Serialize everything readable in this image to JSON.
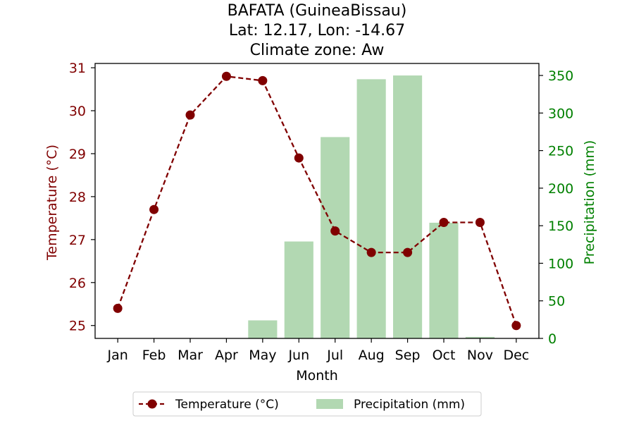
{
  "chart_data": {
    "type": "bar+line",
    "title_lines": [
      "BAFATA (GuineaBissau)",
      "Lat: 12.17, Lon: -14.67",
      "Climate zone: Aw"
    ],
    "xlabel": "Month",
    "categories": [
      "Jan",
      "Feb",
      "Mar",
      "Apr",
      "May",
      "Jun",
      "Jul",
      "Aug",
      "Sep",
      "Oct",
      "Nov",
      "Dec"
    ],
    "temperature": {
      "name": "Temperature (°C)",
      "axis_label": "Temperature (°C)",
      "values": [
        25.4,
        27.7,
        29.9,
        30.8,
        30.7,
        28.9,
        27.2,
        26.7,
        26.7,
        27.4,
        27.4,
        25.0
      ],
      "ylim": [
        24.7,
        31.1
      ],
      "ticks": [
        25,
        26,
        27,
        28,
        29,
        30,
        31
      ],
      "color": "#800000"
    },
    "precipitation": {
      "name": "Precipitation (mm)",
      "axis_label": "Precipitation (mm)",
      "values": [
        0,
        0,
        0,
        0,
        24,
        129,
        268,
        345,
        350,
        154,
        2,
        0
      ],
      "ylim": [
        0,
        366
      ],
      "ticks": [
        0,
        50,
        100,
        150,
        200,
        250,
        300,
        350
      ],
      "color": "#b2d8b2",
      "axis_color": "#008000"
    },
    "legend_placement": "bottom-center",
    "grid": false
  }
}
